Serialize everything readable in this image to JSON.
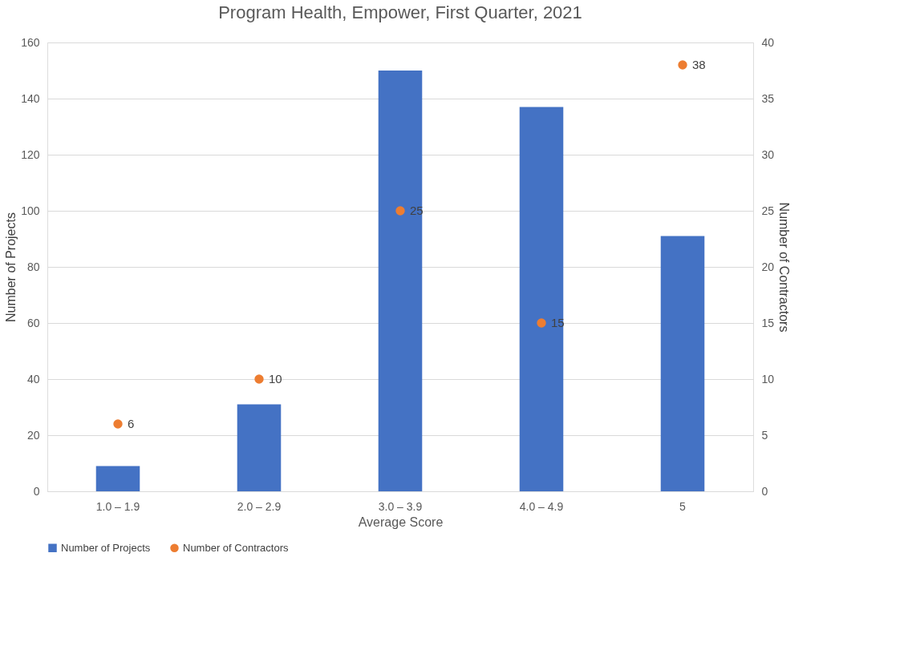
{
  "chart_data": {
    "type": "bar",
    "title": "Program Health, Empower, First Quarter, 2021",
    "xlabel": "Average Score",
    "ylabel": "Number of Projects",
    "y2label": "Number of Contractors",
    "categories": [
      "1.0 – 1.9",
      "2.0 – 2.9",
      "3.0 – 3.9",
      "4.0 – 4.9",
      "5"
    ],
    "series": [
      {
        "name": "Number of  Projects",
        "color": "#4472c4",
        "values": [
          9,
          31,
          150,
          137,
          91
        ]
      },
      {
        "name": "Number of Contractors",
        "type": "scatter",
        "axis": "y2",
        "color": "#ed7d31",
        "marker": "circle",
        "values": [
          6,
          10,
          25,
          15,
          38
        ],
        "value_labels": [
          "6",
          "10",
          "25",
          "15",
          "38"
        ]
      }
    ],
    "ylim": [
      0,
      160
    ],
    "yticks": [
      0,
      20,
      40,
      60,
      80,
      100,
      120,
      140,
      160
    ],
    "y2lim": [
      0,
      40
    ],
    "y2ticks": [
      0,
      5,
      10,
      15,
      20,
      25,
      30,
      35,
      40
    ],
    "grid": "y",
    "legend": "bottom"
  }
}
